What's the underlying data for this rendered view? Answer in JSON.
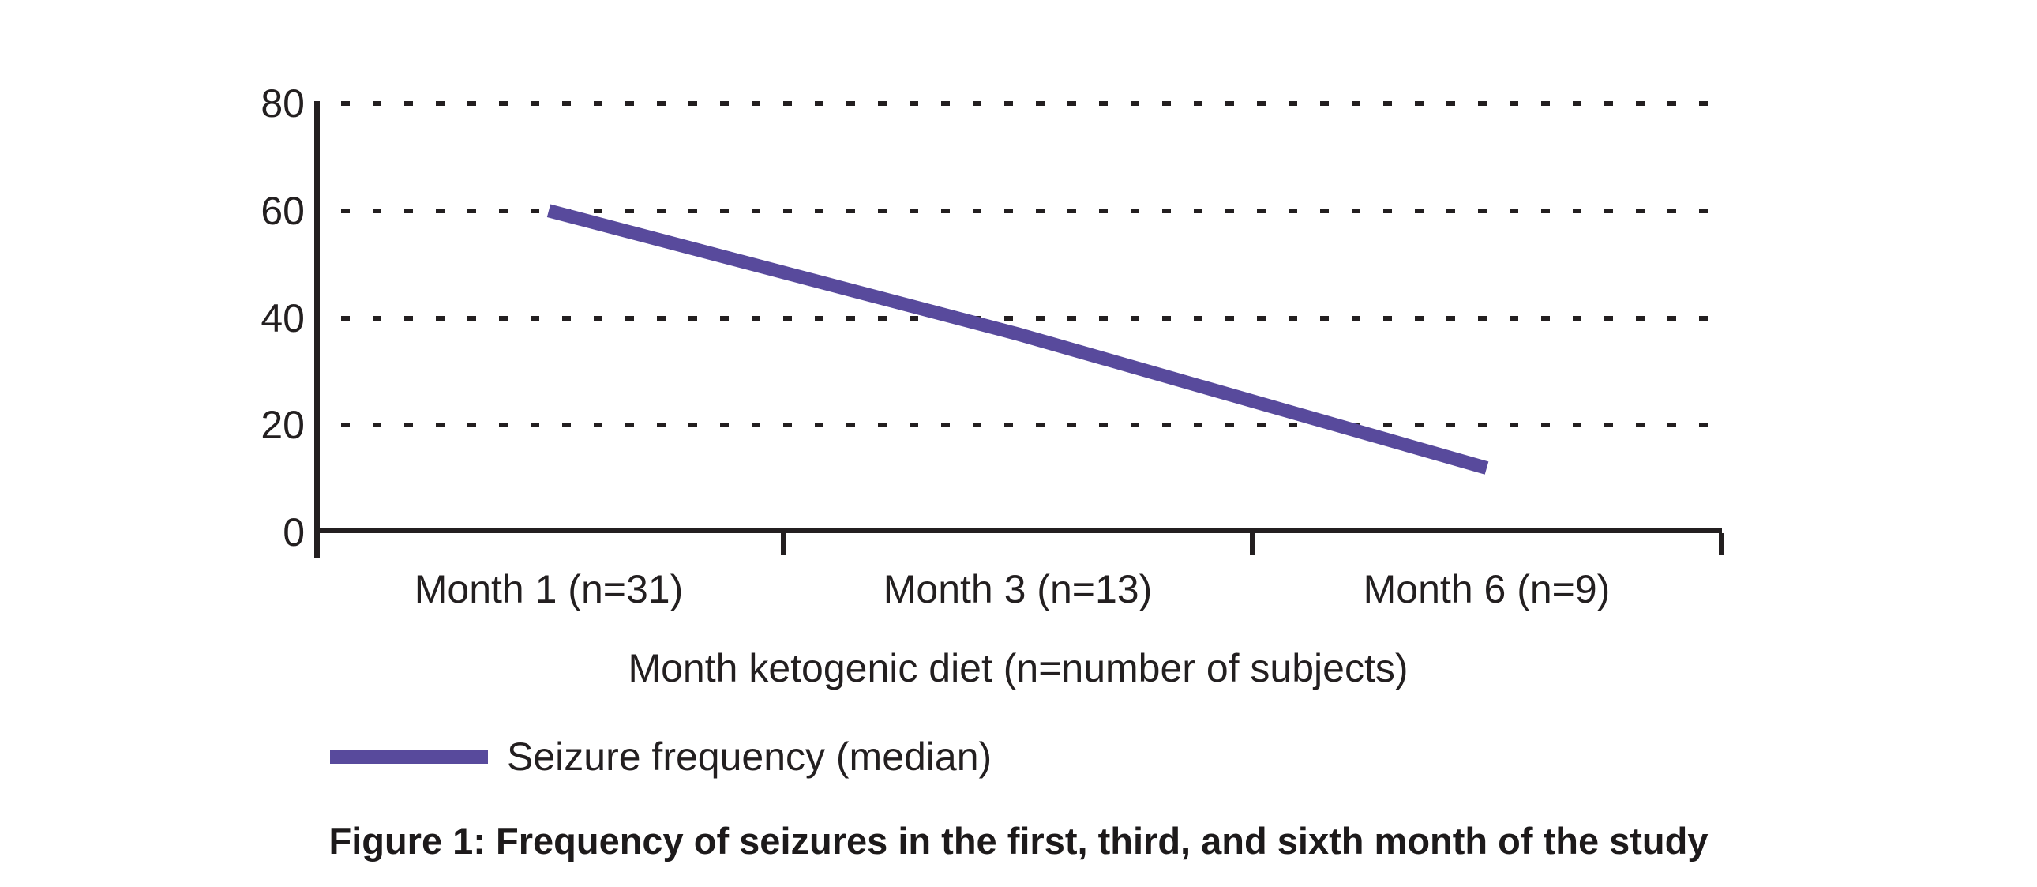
{
  "figure": {
    "caption": "Figure 1: Frequency of seizures in the first, third, and sixth month of the study"
  },
  "chart_data": {
    "type": "line",
    "title": "",
    "categories": [
      "Month 1 (n=31)",
      "Month 3 (n=13)",
      "Month 6 (n=9)"
    ],
    "series": [
      {
        "name": "Seizure frequency (median)",
        "values": [
          60,
          37,
          12
        ]
      }
    ],
    "xlabel": "Month ketogenic diet (n=number of subjects)",
    "ylabel": "",
    "ylim": [
      0,
      80
    ],
    "yticks": [
      0,
      20,
      40,
      60,
      80
    ],
    "grid": "horizontal dashed gridlines at each y tick, none at 0",
    "legend_position": "bottom-left",
    "legend": [
      "Seizure frequency (median)"
    ]
  },
  "colors": {
    "ink": "#231f20",
    "series_line": "#584a9c",
    "background": "#ffffff"
  }
}
